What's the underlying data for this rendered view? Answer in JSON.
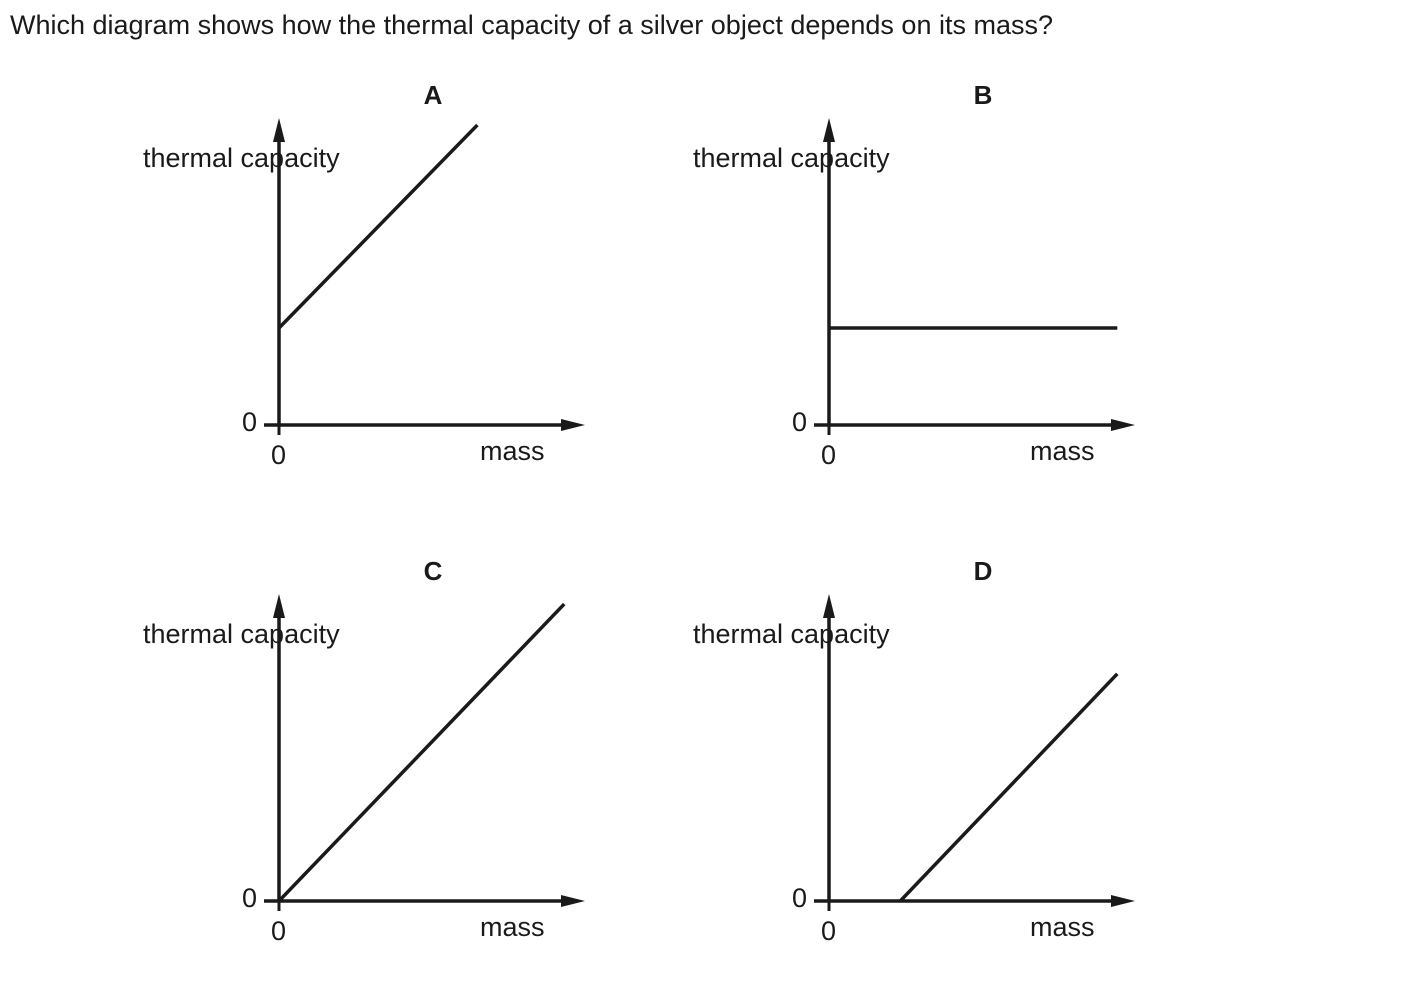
{
  "question": "Which diagram shows how the thermal capacity of a silver object depends on its mass?",
  "colors": {
    "ink": "#1a1a1a",
    "background": "#ffffff"
  },
  "chart_data": [
    {
      "type": "line",
      "title": "A",
      "xlabel": "mass",
      "ylabel": "thermal capacity",
      "x_origin_tick": "0",
      "y_origin_tick": "0",
      "xlim": [
        0,
        10
      ],
      "ylim": [
        0,
        10
      ],
      "series": [
        {
          "x": [
            0,
            6.4
          ],
          "y": [
            3.2,
            9.9
          ]
        }
      ]
    },
    {
      "type": "line",
      "title": "B",
      "xlabel": "mass",
      "ylabel": "thermal capacity",
      "x_origin_tick": "0",
      "y_origin_tick": "0",
      "xlim": [
        0,
        10
      ],
      "ylim": [
        0,
        10
      ],
      "series": [
        {
          "x": [
            0,
            9.3
          ],
          "y": [
            3.2,
            3.2
          ]
        }
      ]
    },
    {
      "type": "line",
      "title": "C",
      "xlabel": "mass",
      "ylabel": "thermal capacity",
      "x_origin_tick": "0",
      "y_origin_tick": "0",
      "xlim": [
        0,
        10
      ],
      "ylim": [
        0,
        10
      ],
      "series": [
        {
          "x": [
            0,
            9.2
          ],
          "y": [
            0,
            9.8
          ]
        }
      ]
    },
    {
      "type": "line",
      "title": "D",
      "xlabel": "mass",
      "ylabel": "thermal capacity",
      "x_origin_tick": "0",
      "y_origin_tick": "0",
      "xlim": [
        0,
        10
      ],
      "ylim": [
        0,
        10
      ],
      "series": [
        {
          "x": [
            2.3,
            9.3
          ],
          "y": [
            0,
            7.5
          ]
        }
      ]
    }
  ]
}
